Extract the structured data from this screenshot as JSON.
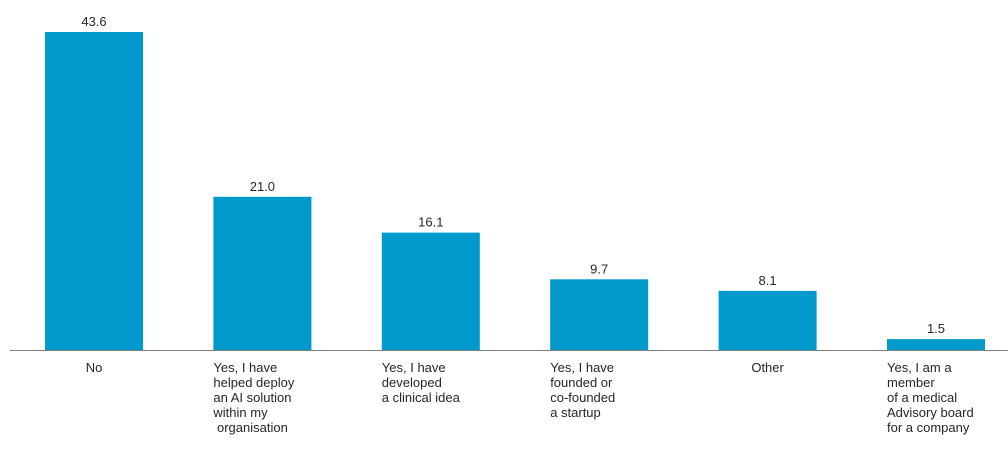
{
  "chart_data": {
    "type": "bar",
    "categories": [
      [
        "No"
      ],
      [
        "Yes, I have",
        "helped deploy",
        "an AI solution",
        "within my",
        " organisation"
      ],
      [
        "Yes, I have",
        "developed",
        "a clinical idea"
      ],
      [
        "Yes, I have",
        "founded or",
        "co-founded",
        "a startup"
      ],
      [
        "Other"
      ],
      [
        "Yes, I am a",
        "member",
        "of a medical",
        "Advisory board",
        "for a company"
      ]
    ],
    "values": [
      43.6,
      21.0,
      16.1,
      9.7,
      8.1,
      1.5
    ],
    "value_labels": [
      "43.6",
      "21.0",
      "16.1",
      "9.7",
      "8.1",
      "1.5"
    ],
    "ylim": [
      0,
      43.6
    ],
    "bar_color": "#0099cc",
    "axis_color": "#7f7f7f",
    "text_color": "#262626",
    "grid": false,
    "legend": "none"
  }
}
